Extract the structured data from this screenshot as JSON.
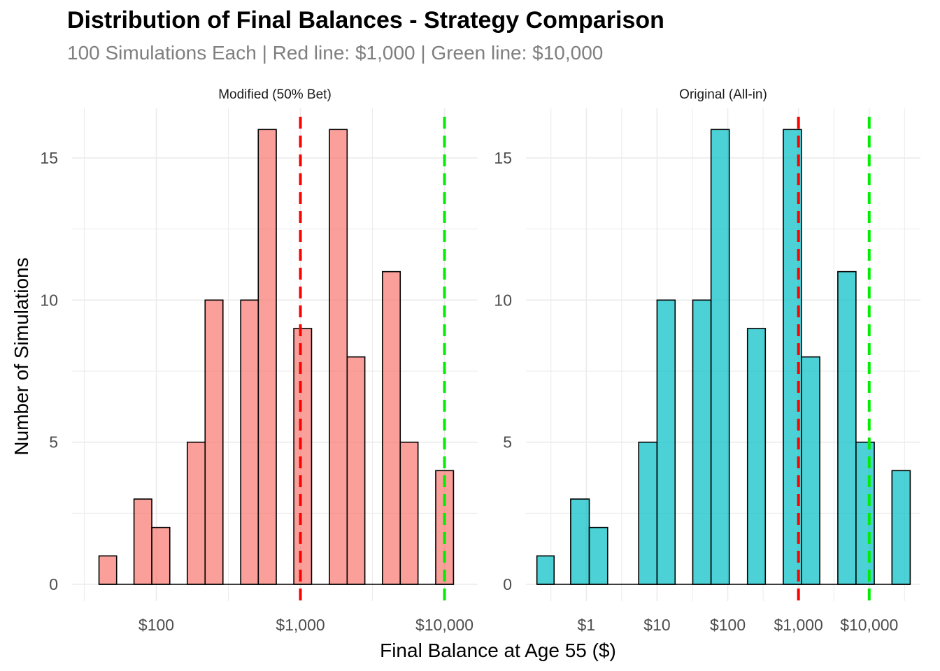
{
  "title": "Distribution of Final Balances - Strategy Comparison",
  "subtitle": "100 Simulations Each | Red line: $1,000 | Green line: $10,000",
  "colors": {
    "modified_fill": "#F8766D",
    "original_fill": "#00BFC4",
    "red_line": "#FF0000",
    "green_line": "#00EE00",
    "bar_outline": "#000000",
    "grid": "#ebebeb"
  },
  "chart_data": [
    {
      "type": "bar",
      "panel": "Modified (50% Bet)",
      "xscale": "log",
      "xlabel": "Final Balance at Age 55 ($)",
      "ylabel": "Number of Simulations",
      "ylim": [
        0,
        16
      ],
      "y_ticks": [
        0,
        5,
        10,
        15
      ],
      "x_ticks": [
        {
          "value": 100,
          "label": "$100"
        },
        {
          "value": 1000,
          "label": "$1,000"
        },
        {
          "value": 10000,
          "label": "$10,000"
        }
      ],
      "reference_lines": [
        {
          "value": 1000,
          "color": "red"
        },
        {
          "value": 10000,
          "color": "green"
        }
      ],
      "bins": [
        {
          "x0": 40,
          "x1": 53,
          "count": 1
        },
        {
          "x0": 70,
          "x1": 93,
          "count": 3
        },
        {
          "x0": 93,
          "x1": 124,
          "count": 2
        },
        {
          "x0": 164,
          "x1": 218,
          "count": 5
        },
        {
          "x0": 218,
          "x1": 290,
          "count": 10
        },
        {
          "x0": 385,
          "x1": 510,
          "count": 10
        },
        {
          "x0": 510,
          "x1": 680,
          "count": 16
        },
        {
          "x0": 900,
          "x1": 1195,
          "count": 9
        },
        {
          "x0": 1590,
          "x1": 2110,
          "count": 16
        },
        {
          "x0": 2110,
          "x1": 2800,
          "count": 8
        },
        {
          "x0": 3710,
          "x1": 4930,
          "count": 11
        },
        {
          "x0": 4930,
          "x1": 6550,
          "count": 5
        },
        {
          "x0": 8690,
          "x1": 11550,
          "count": 4
        }
      ]
    },
    {
      "type": "bar",
      "panel": "Original (All-in)",
      "xscale": "log",
      "xlabel": "Final Balance at Age 55 ($)",
      "ylabel": "Number of Simulations",
      "ylim": [
        0,
        16
      ],
      "y_ticks": [
        0,
        5,
        10,
        15
      ],
      "x_ticks": [
        {
          "value": 1,
          "label": "$1"
        },
        {
          "value": 10,
          "label": "$10"
        },
        {
          "value": 100,
          "label": "$100"
        },
        {
          "value": 1000,
          "label": "$1,000"
        },
        {
          "value": 10000,
          "label": "$10,000"
        }
      ],
      "reference_lines": [
        {
          "value": 1000,
          "color": "red"
        },
        {
          "value": 10000,
          "color": "green"
        }
      ],
      "bins": [
        {
          "x0": 0.2,
          "x1": 0.35,
          "count": 1
        },
        {
          "x0": 0.6,
          "x1": 1.1,
          "count": 3
        },
        {
          "x0": 1.1,
          "x1": 2.0,
          "count": 2
        },
        {
          "x0": 5.5,
          "x1": 10,
          "count": 5
        },
        {
          "x0": 10,
          "x1": 18,
          "count": 10
        },
        {
          "x0": 32,
          "x1": 58,
          "count": 10
        },
        {
          "x0": 58,
          "x1": 105,
          "count": 16
        },
        {
          "x0": 190,
          "x1": 340,
          "count": 9
        },
        {
          "x0": 610,
          "x1": 1100,
          "count": 16
        },
        {
          "x0": 1100,
          "x1": 2000,
          "count": 8
        },
        {
          "x0": 3600,
          "x1": 6500,
          "count": 11
        },
        {
          "x0": 6500,
          "x1": 11800,
          "count": 5
        },
        {
          "x0": 21000,
          "x1": 38000,
          "count": 4
        }
      ]
    }
  ]
}
